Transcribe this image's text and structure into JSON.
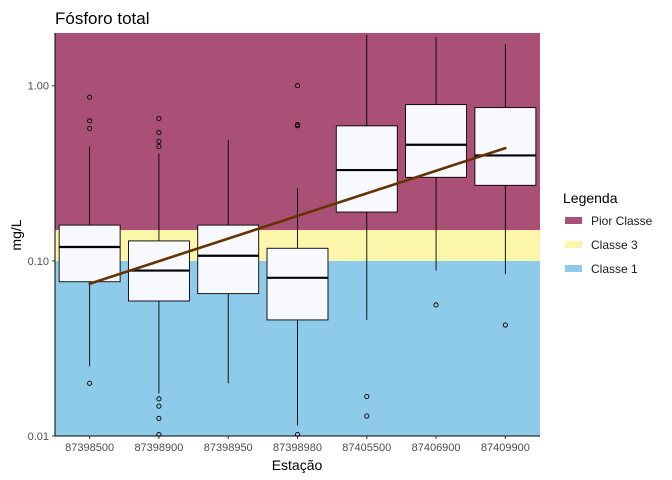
{
  "chart_data": {
    "type": "boxplot",
    "title": "Fósforo total",
    "xlabel": "Estação",
    "ylabel": "mg/L",
    "yscale": "log10",
    "ylim": [
      0.01,
      2.0
    ],
    "yticks": [
      {
        "value": 0.01,
        "label": "0.01"
      },
      {
        "value": 0.1,
        "label": "0.10"
      },
      {
        "value": 1.0,
        "label": "1.00"
      }
    ],
    "categories": [
      "87398500",
      "87398900",
      "87398950",
      "87398980",
      "87405500",
      "87406900",
      "87409900"
    ],
    "boxes": [
      {
        "category": "87398500",
        "whisker_low": 0.025,
        "q1": 0.076,
        "median": 0.12,
        "q3": 0.16,
        "whisker_high": 0.45,
        "outliers": [
          0.02,
          0.57,
          0.63,
          0.86
        ]
      },
      {
        "category": "87398900",
        "whisker_low": 0.0175,
        "q1": 0.059,
        "median": 0.088,
        "q3": 0.13,
        "whisker_high": 0.41,
        "outliers": [
          0.0163,
          0.0148,
          0.0126,
          0.0102,
          0.45,
          0.48,
          0.54,
          0.65
        ]
      },
      {
        "category": "87398950",
        "whisker_low": 0.02,
        "q1": 0.065,
        "median": 0.107,
        "q3": 0.16,
        "whisker_high": 0.49,
        "outliers": []
      },
      {
        "category": "87398980",
        "whisker_low": 0.0115,
        "q1": 0.046,
        "median": 0.08,
        "q3": 0.118,
        "whisker_high": 0.26,
        "outliers": [
          0.0102,
          0.59,
          0.6,
          1.0
        ]
      },
      {
        "category": "87405500",
        "whisker_low": 0.046,
        "q1": 0.19,
        "median": 0.33,
        "q3": 0.59,
        "whisker_high": 1.95,
        "outliers": [
          0.0168,
          0.013
        ]
      },
      {
        "category": "87406900",
        "whisker_low": 0.088,
        "q1": 0.3,
        "median": 0.46,
        "q3": 0.78,
        "whisker_high": 1.9,
        "outliers": [
          0.056
        ]
      },
      {
        "category": "87409900",
        "whisker_low": 0.084,
        "q1": 0.27,
        "median": 0.4,
        "q3": 0.75,
        "whisker_high": 1.73,
        "outliers": [
          0.043
        ]
      }
    ],
    "trend_line": {
      "start": {
        "category": "87398500",
        "y": 0.074
      },
      "end": {
        "category": "87409900",
        "y": 0.44
      },
      "color": "#663300"
    },
    "bands": [
      {
        "name": "Classe 1",
        "from": 0.01,
        "to": 0.1,
        "color": "#8ecbeb"
      },
      {
        "name": "Classe 3",
        "from": 0.1,
        "to": 0.15,
        "color": "#fcf6aa"
      },
      {
        "name": "Pior Classe",
        "from": 0.15,
        "to": 2.0,
        "color": "#aa5076"
      }
    ],
    "legend": {
      "title": "Legenda",
      "position": "right",
      "items": [
        {
          "label": "Pior Classe",
          "color": "#aa5076"
        },
        {
          "label": "Classe 3",
          "color": "#fcf6aa"
        },
        {
          "label": "Classe 1",
          "color": "#8ecbeb"
        }
      ]
    },
    "box_fill": "#f8f8ff",
    "grid": false
  }
}
